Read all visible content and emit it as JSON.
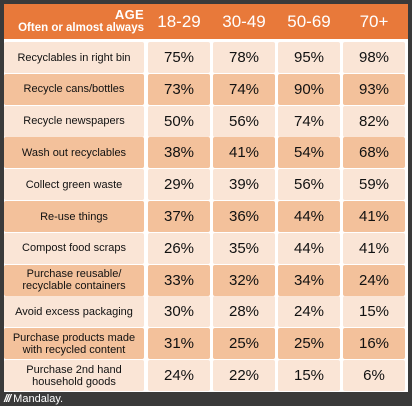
{
  "header": {
    "age_label": "AGE",
    "subtitle": "Often or almost always",
    "columns": [
      "18-29",
      "30-49",
      "50-69",
      "70+"
    ]
  },
  "colors": {
    "header": "#e8793a",
    "light": "#fae5d6",
    "dark": "#f3c19b",
    "footer_bg": "#3a3a3a"
  },
  "chart_data": {
    "type": "table",
    "title": "",
    "columns": [
      "18-29",
      "30-49",
      "50-69",
      "70+"
    ],
    "rows": [
      {
        "label": "Recyclables in right bin",
        "values": [
          "75%",
          "78%",
          "95%",
          "98%"
        ]
      },
      {
        "label": "Recycle cans/bottles",
        "values": [
          "73%",
          "74%",
          "90%",
          "93%"
        ]
      },
      {
        "label": "Recycle newspapers",
        "values": [
          "50%",
          "56%",
          "74%",
          "82%"
        ]
      },
      {
        "label": "Wash out recyclables",
        "values": [
          "38%",
          "41%",
          "54%",
          "68%"
        ]
      },
      {
        "label": "Collect green waste",
        "values": [
          "29%",
          "39%",
          "56%",
          "59%"
        ]
      },
      {
        "label": "Re-use things",
        "values": [
          "37%",
          "36%",
          "44%",
          "41%"
        ]
      },
      {
        "label": "Compost food scraps",
        "values": [
          "26%",
          "35%",
          "44%",
          "41%"
        ]
      },
      {
        "label": "Purchase reusable/ recyclable containers",
        "values": [
          "33%",
          "32%",
          "34%",
          "24%"
        ]
      },
      {
        "label": "Avoid excess packaging",
        "values": [
          "30%",
          "28%",
          "24%",
          "15%"
        ]
      },
      {
        "label": "Purchase products made with recycled content",
        "values": [
          "31%",
          "25%",
          "25%",
          "16%"
        ]
      },
      {
        "label": "Purchase 2nd hand household goods",
        "values": [
          "24%",
          "22%",
          "15%",
          "6%"
        ]
      }
    ]
  },
  "footer": {
    "mark": "///",
    "brand": "Mandalay."
  }
}
